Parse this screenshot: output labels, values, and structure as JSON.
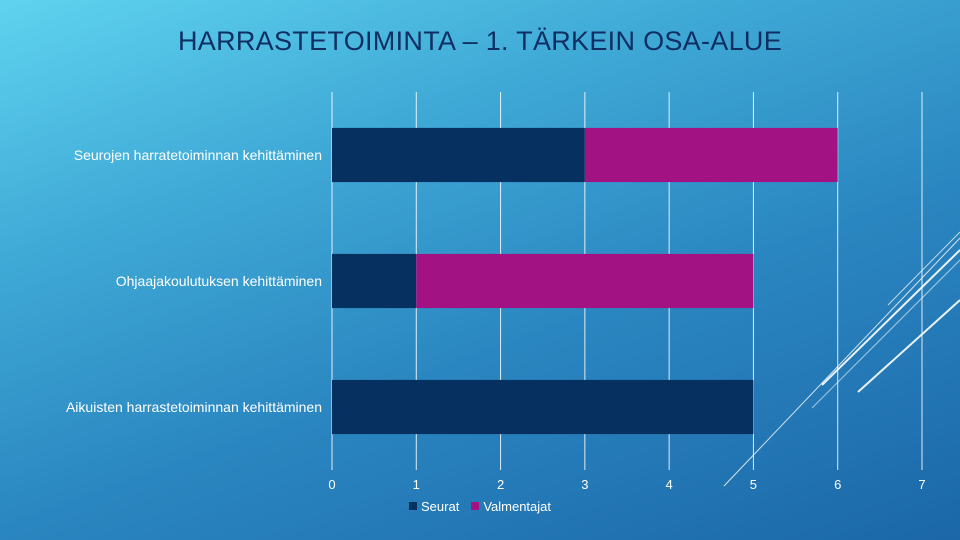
{
  "title": "HARRASTETOIMINTA – 1. TÄRKEIN OSA-ALUE",
  "chart_data": {
    "type": "bar",
    "orientation": "horizontal",
    "stacked": true,
    "categories": [
      "Seurojen harratetoiminnan kehittäminen",
      "Ohjaajakoulutuksen kehittäminen",
      "Aikuisten harrastetoiminnan kehittäminen"
    ],
    "series": [
      {
        "name": "Seurat",
        "values": [
          3,
          1,
          5
        ],
        "color": "#05305f"
      },
      {
        "name": "Valmentajat",
        "values": [
          3,
          4,
          0
        ],
        "color": "#a31283"
      }
    ],
    "xlim": [
      0,
      7
    ],
    "xticks": [
      "0",
      "1",
      "2",
      "3",
      "4",
      "5",
      "6",
      "7"
    ],
    "grid": true,
    "legend_position": "bottom"
  }
}
